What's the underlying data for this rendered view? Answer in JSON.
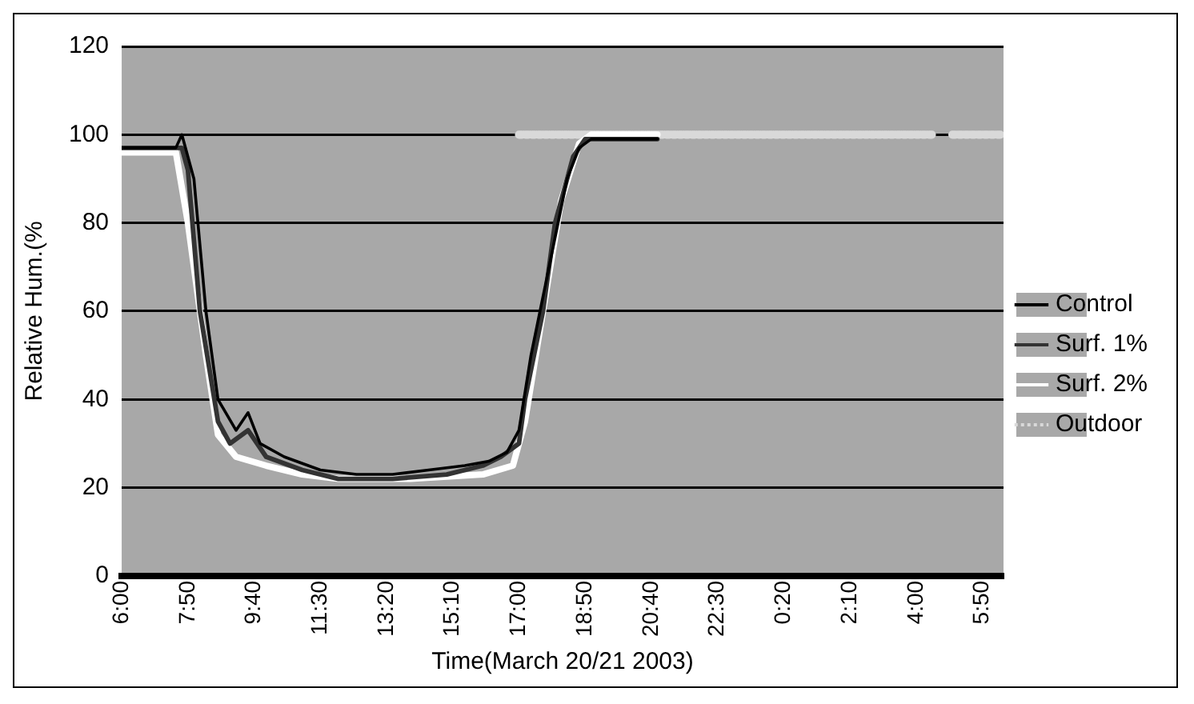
{
  "chart_data": {
    "type": "line",
    "xlabel": "Time(March 20/21 2003)",
    "ylabel": "Relative Hum.(%",
    "xlim": [
      "2003-03-20T06:00",
      "2003-03-21T06:25"
    ],
    "xticks": [
      {
        "value": "2003-03-20T06:00",
        "label": "6:00"
      },
      {
        "value": "2003-03-20T07:50",
        "label": "7:50"
      },
      {
        "value": "2003-03-20T09:40",
        "label": "9:40"
      },
      {
        "value": "2003-03-20T11:30",
        "label": "11:30"
      },
      {
        "value": "2003-03-20T13:20",
        "label": "13:20"
      },
      {
        "value": "2003-03-20T15:10",
        "label": "15:10"
      },
      {
        "value": "2003-03-20T17:00",
        "label": "17:00"
      },
      {
        "value": "2003-03-20T18:50",
        "label": "18:50"
      },
      {
        "value": "2003-03-20T20:40",
        "label": "20:40"
      },
      {
        "value": "2003-03-20T22:30",
        "label": "22:30"
      },
      {
        "value": "2003-03-21T00:20",
        "label": "0:20"
      },
      {
        "value": "2003-03-21T02:10",
        "label": "2:10"
      },
      {
        "value": "2003-03-21T04:00",
        "label": "4:00"
      },
      {
        "value": "2003-03-21T05:50",
        "label": "5:50"
      }
    ],
    "ylim": [
      0,
      120
    ],
    "yticks": [
      0,
      20,
      40,
      60,
      80,
      100,
      120
    ],
    "grid": "y",
    "legend": "right",
    "marker": "none",
    "series": [
      {
        "name": "Control",
        "color": "#000000",
        "line_style": "solid",
        "x": [
          "2003-03-20T06:00",
          "2003-03-20T07:30",
          "2003-03-20T07:40",
          "2003-03-20T08:00",
          "2003-03-20T08:20",
          "2003-03-20T08:40",
          "2003-03-20T09:10",
          "2003-03-20T09:30",
          "2003-03-20T09:50",
          "2003-03-20T10:30",
          "2003-03-20T11:30",
          "2003-03-20T12:30",
          "2003-03-20T13:30",
          "2003-03-20T14:30",
          "2003-03-20T15:30",
          "2003-03-20T16:10",
          "2003-03-20T16:40",
          "2003-03-20T17:00",
          "2003-03-20T17:20",
          "2003-03-20T17:50",
          "2003-03-20T18:20",
          "2003-03-20T18:40",
          "2003-03-20T19:00",
          "2003-03-20T20:50"
        ],
        "values": [
          97,
          97,
          100,
          90,
          60,
          40,
          33,
          37,
          30,
          27,
          24,
          23,
          23,
          24,
          25,
          26,
          28,
          33,
          50,
          70,
          90,
          97,
          99,
          99
        ]
      },
      {
        "name": "Surf. 1%",
        "color": "#333333",
        "line_style": "solid",
        "x": [
          "2003-03-20T06:00",
          "2003-03-20T07:40",
          "2003-03-20T07:50",
          "2003-03-20T08:10",
          "2003-03-20T08:40",
          "2003-03-20T09:00",
          "2003-03-20T09:30",
          "2003-03-20T10:00",
          "2003-03-20T11:00",
          "2003-03-20T12:00",
          "2003-03-20T13:30",
          "2003-03-20T15:00",
          "2003-03-20T16:00",
          "2003-03-20T16:30",
          "2003-03-20T17:00",
          "2003-03-20T17:10",
          "2003-03-20T17:40",
          "2003-03-20T18:00",
          "2003-03-20T18:30",
          "2003-03-20T18:50",
          "2003-03-20T20:50"
        ],
        "values": [
          97,
          97,
          92,
          60,
          35,
          30,
          33,
          27,
          24,
          22,
          22,
          23,
          25,
          27,
          30,
          40,
          60,
          80,
          95,
          99,
          99
        ]
      },
      {
        "name": "Surf. 2%",
        "color": "#ffffff",
        "line_style": "solid",
        "x": [
          "2003-03-20T06:00",
          "2003-03-20T07:30",
          "2003-03-20T07:50",
          "2003-03-20T08:20",
          "2003-03-20T08:40",
          "2003-03-20T09:10",
          "2003-03-20T10:00",
          "2003-03-20T11:00",
          "2003-03-20T12:00",
          "2003-03-20T14:00",
          "2003-03-20T16:00",
          "2003-03-20T16:50",
          "2003-03-20T17:10",
          "2003-03-20T17:40",
          "2003-03-20T18:10",
          "2003-03-20T18:40",
          "2003-03-20T19:00",
          "2003-03-20T20:50"
        ],
        "values": [
          96,
          96,
          80,
          50,
          32,
          27,
          25,
          23,
          22,
          22,
          23,
          25,
          35,
          60,
          85,
          98,
          100,
          100
        ]
      },
      {
        "name": "Outdoor",
        "color": "#d9d9d9",
        "line_style": "dotted",
        "x": [
          "2003-03-20T17:00",
          "2003-03-20T20:00",
          "2003-03-21T00:00",
          "2003-03-21T04:30",
          "2003-03-21T04:40",
          "2003-03-21T05:00",
          "2003-03-21T06:25"
        ],
        "values": [
          100,
          100,
          100,
          100,
          null,
          100,
          100
        ]
      }
    ]
  }
}
